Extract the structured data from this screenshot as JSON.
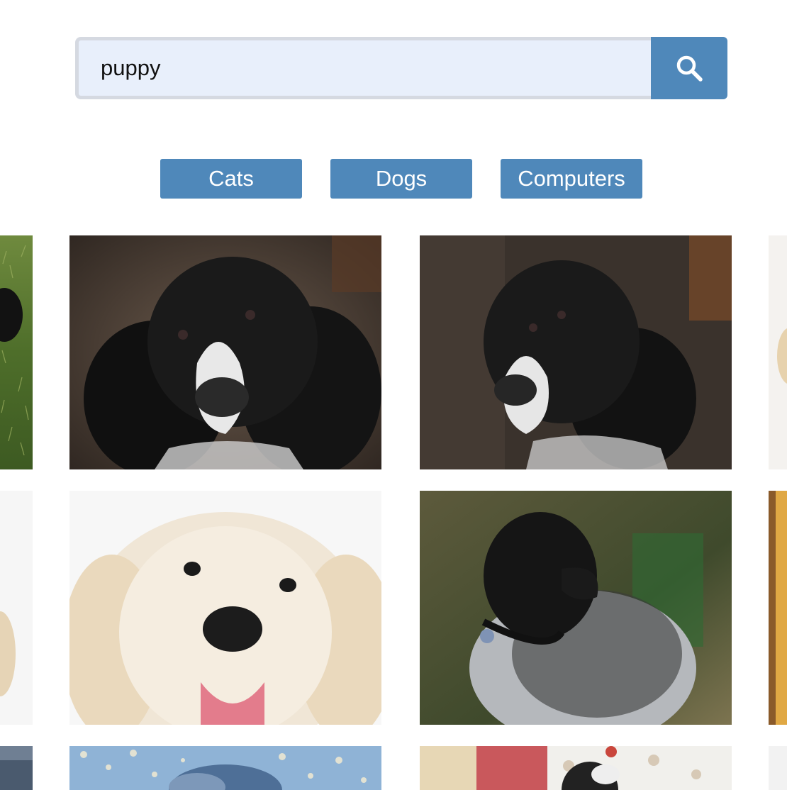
{
  "search": {
    "value": "puppy",
    "button_icon": "search-icon"
  },
  "categories": [
    {
      "label": "Cats"
    },
    {
      "label": "Dogs"
    },
    {
      "label": "Computers"
    }
  ],
  "colors": {
    "accent": "#4f88ba",
    "input_bg": "#e8effb",
    "input_border": "#d5d9e1"
  },
  "results": [
    {
      "subject": "black-dog-on-grass",
      "partial": true
    },
    {
      "subject": "black-white-spaniel",
      "partial": false
    },
    {
      "subject": "black-white-spaniel",
      "partial": false
    },
    {
      "subject": "light-dog",
      "partial": true
    },
    {
      "subject": "light-dog",
      "partial": true
    },
    {
      "subject": "white-golden-retriever-puppy",
      "partial": false
    },
    {
      "subject": "black-white-dog-with-collar",
      "partial": false
    },
    {
      "subject": "tan-dog",
      "partial": true
    },
    {
      "subject": "dark-photo",
      "partial": true
    },
    {
      "subject": "blue-pebble-artwork",
      "partial": true
    },
    {
      "subject": "dog-in-patterned-shirt",
      "partial": true
    },
    {
      "subject": "light-photo",
      "partial": true
    }
  ]
}
